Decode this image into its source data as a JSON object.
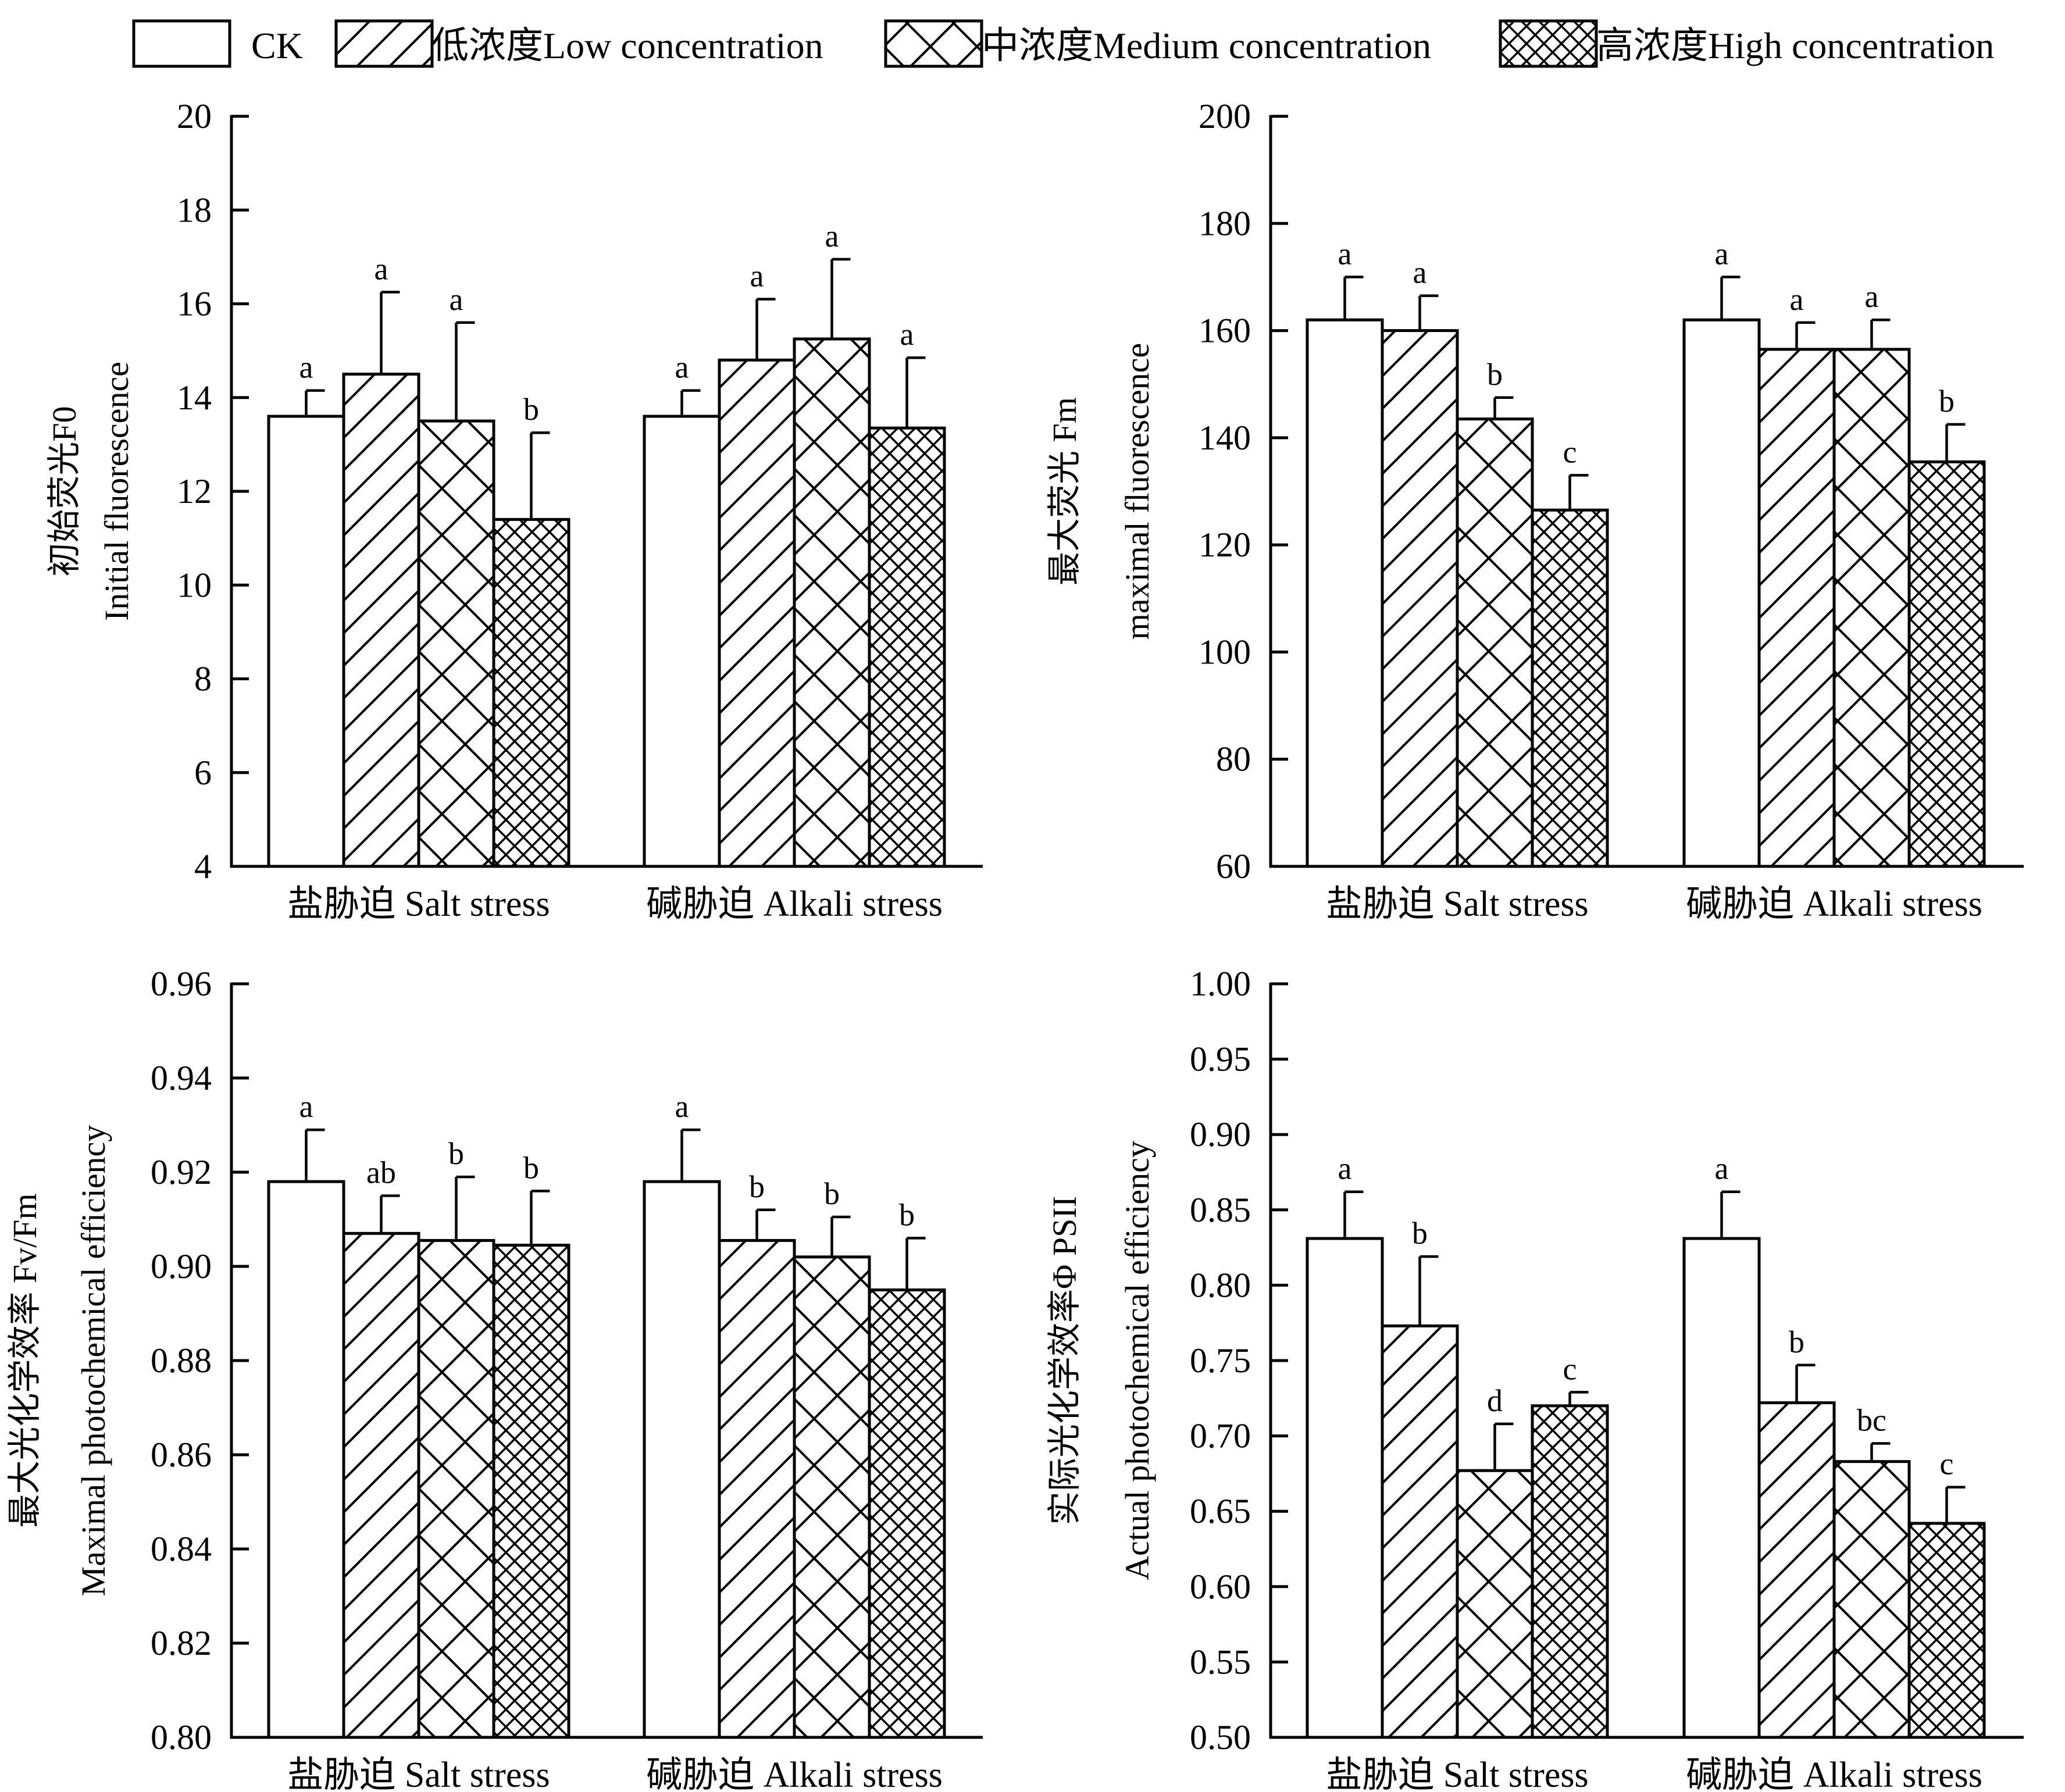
{
  "legend": [
    {
      "label": "CK",
      "pattern": "none"
    },
    {
      "label": "低浓度Low concentration",
      "pattern": "diag"
    },
    {
      "label": "中浓度Medium concentration",
      "pattern": "cross"
    },
    {
      "label": "高浓度High concentration",
      "pattern": "crossdense"
    }
  ],
  "chart_data": [
    {
      "type": "bar",
      "ylabel": [
        "初始荧光F0",
        "Initial fluorescence"
      ],
      "ylim": [
        4,
        20
      ],
      "yticks": [
        "4",
        "6",
        "8",
        "10",
        "12",
        "14",
        "16",
        "18",
        "20"
      ],
      "categories": [
        "盐胁迫 Salt stress",
        "碱胁迫 Alkali stress"
      ],
      "series": [
        {
          "name": "CK",
          "values": [
            13.6,
            13.6
          ],
          "errors": [
            0.55,
            0.55
          ],
          "letters": [
            "a",
            "a"
          ]
        },
        {
          "name": "低浓度Low concentration",
          "values": [
            14.5,
            14.8
          ],
          "errors": [
            1.75,
            1.3
          ],
          "letters": [
            "a",
            "a"
          ]
        },
        {
          "name": "中浓度Medium concentration",
          "values": [
            13.5,
            15.25
          ],
          "errors": [
            2.1,
            1.7
          ],
          "letters": [
            "a",
            "a"
          ]
        },
        {
          "name": "高浓度High concentration",
          "values": [
            11.4,
            13.35
          ],
          "errors": [
            1.85,
            1.5
          ],
          "letters": [
            "b",
            "a"
          ]
        }
      ]
    },
    {
      "type": "bar",
      "ylabel": [
        "最大荧光 Fm",
        "maximal fluorescence"
      ],
      "ylim": [
        60,
        200
      ],
      "yticks": [
        "60",
        "80",
        "100",
        "120",
        "140",
        "160",
        "180",
        "200"
      ],
      "categories": [
        "盐胁迫 Salt stress",
        "碱胁迫 Alkali stress"
      ],
      "series": [
        {
          "name": "CK",
          "values": [
            162,
            162
          ],
          "errors": [
            8,
            8
          ],
          "letters": [
            "a",
            "a"
          ]
        },
        {
          "name": "低浓度Low concentration",
          "values": [
            160,
            156.5
          ],
          "errors": [
            6.5,
            5
          ],
          "letters": [
            "a",
            "a"
          ]
        },
        {
          "name": "中浓度Medium concentration",
          "values": [
            143.5,
            156.5
          ],
          "errors": [
            4,
            5.5
          ],
          "letters": [
            "b",
            "a"
          ]
        },
        {
          "name": "高浓度High concentration",
          "values": [
            126.5,
            135.5
          ],
          "errors": [
            6.5,
            7
          ],
          "letters": [
            "c",
            "b"
          ]
        }
      ]
    },
    {
      "type": "bar",
      "ylabel": [
        "最大光化学效率 Fv/Fm",
        "Maximal photochemical efficiency"
      ],
      "ylim": [
        0.8,
        0.96
      ],
      "yticks": [
        "0.80",
        "0.82",
        "0.84",
        "0.86",
        "0.88",
        "0.90",
        "0.92",
        "0.94",
        "0.96"
      ],
      "categories": [
        "盐胁迫 Salt stress",
        "碱胁迫 Alkali stress"
      ],
      "series": [
        {
          "name": "CK",
          "values": [
            0.918,
            0.918
          ],
          "errors": [
            0.011,
            0.011
          ],
          "letters": [
            "a",
            "a"
          ]
        },
        {
          "name": "低浓度Low concentration",
          "values": [
            0.907,
            0.9055
          ],
          "errors": [
            0.008,
            0.0065
          ],
          "letters": [
            "ab",
            "b"
          ]
        },
        {
          "name": "中浓度Medium concentration",
          "values": [
            0.9055,
            0.902
          ],
          "errors": [
            0.0135,
            0.0085
          ],
          "letters": [
            "b",
            "b"
          ]
        },
        {
          "name": "高浓度High concentration",
          "values": [
            0.9045,
            0.895
          ],
          "errors": [
            0.0115,
            0.011
          ],
          "letters": [
            "b",
            "b"
          ]
        }
      ]
    },
    {
      "type": "bar",
      "ylabel": [
        "实际光化学效率Φ PSII",
        "Actual photochemical efficiency"
      ],
      "ylim": [
        0.5,
        1.0
      ],
      "yticks": [
        "0.50",
        "0.55",
        "0.60",
        "0.65",
        "0.70",
        "0.75",
        "0.80",
        "0.85",
        "0.90",
        "0.95",
        "1.00"
      ],
      "categories": [
        "盐胁迫 Salt stress",
        "碱胁迫 Alkali stress"
      ],
      "series": [
        {
          "name": "CK",
          "values": [
            0.831,
            0.831
          ],
          "errors": [
            0.031,
            0.031
          ],
          "letters": [
            "a",
            "a"
          ]
        },
        {
          "name": "低浓度Low concentration",
          "values": [
            0.773,
            0.722
          ],
          "errors": [
            0.046,
            0.025
          ],
          "letters": [
            "b",
            "b"
          ]
        },
        {
          "name": "中浓度Medium concentration",
          "values": [
            0.677,
            0.683
          ],
          "errors": [
            0.031,
            0.012
          ],
          "letters": [
            "d",
            "bc"
          ]
        },
        {
          "name": "高浓度High concentration",
          "values": [
            0.72,
            0.642
          ],
          "errors": [
            0.009,
            0.024
          ],
          "letters": [
            "c",
            "c"
          ]
        }
      ]
    }
  ]
}
